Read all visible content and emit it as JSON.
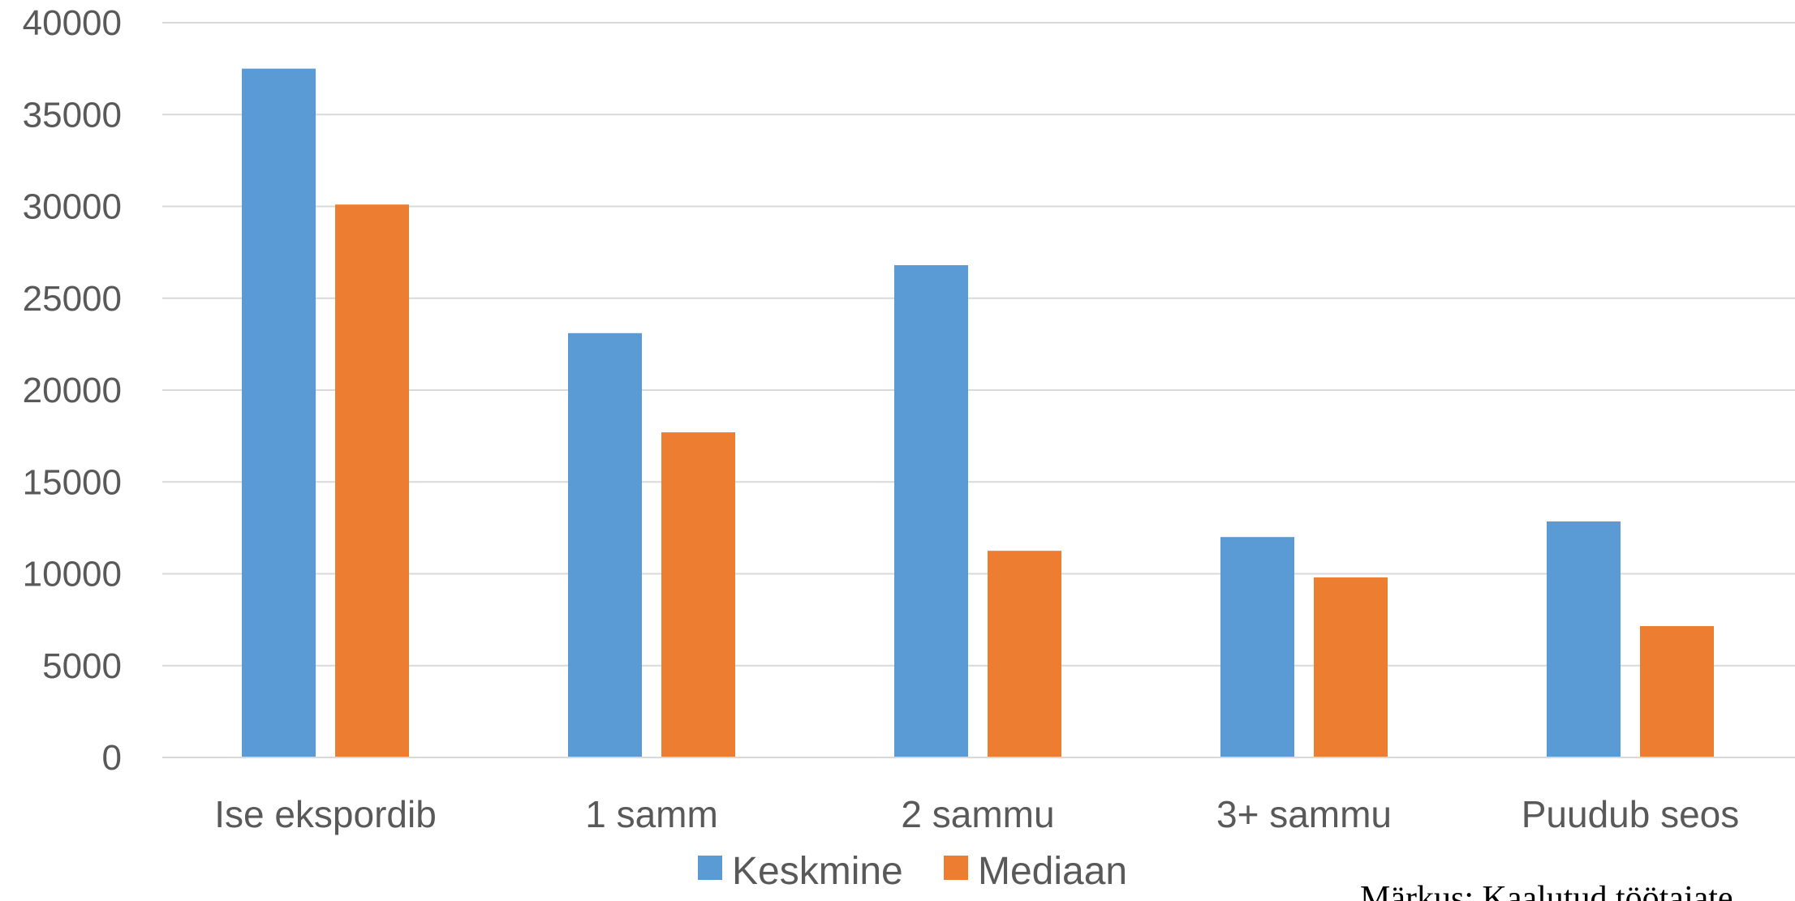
{
  "chart_data": {
    "type": "bar",
    "categories": [
      "Ise ekspordib",
      "1 samm",
      "2 sammu",
      "3+ sammu",
      "Puudub seos"
    ],
    "series": [
      {
        "name": "Keskmine",
        "values": [
          37500,
          23100,
          26800,
          12000,
          12850
        ],
        "color": "#5B9BD5"
      },
      {
        "name": "Mediaan",
        "values": [
          30100,
          17700,
          11250,
          9800,
          7150
        ],
        "color": "#ED7D31"
      }
    ],
    "y_ticks": [
      0,
      5000,
      10000,
      15000,
      20000,
      25000,
      30000,
      35000,
      40000
    ],
    "ylim": [
      0,
      40000
    ],
    "grid": true,
    "legend": "bottom-center",
    "gridline_color": "#D9D9D9",
    "note": "Märkus: Kaalutud töötajate"
  }
}
